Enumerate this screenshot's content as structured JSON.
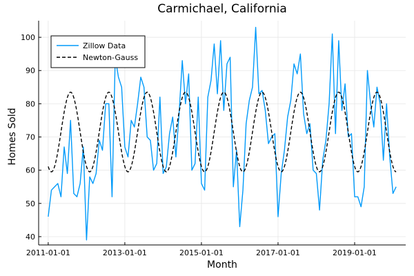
{
  "chart_data": {
    "type": "line",
    "title": "Carmichael, California",
    "xlabel": "Month",
    "ylabel": "Homes Sold",
    "x_start": "2011-01-01",
    "x_ticks": [
      "2011-01-01",
      "2013-01-01",
      "2015-01-01",
      "2017-01-01",
      "2019-01-01"
    ],
    "xlim": [
      "2010-10-01",
      "2020-05-01"
    ],
    "y_ticks": [
      40,
      50,
      60,
      70,
      80,
      90,
      100
    ],
    "ylim": [
      37.5,
      105
    ],
    "grid": true,
    "legend_position": "top-left",
    "series": [
      {
        "name": "Zillow Data",
        "color": "#009AFA",
        "style": "solid",
        "values": [
          46,
          54,
          55,
          56,
          52,
          67,
          59,
          75,
          53,
          52,
          56,
          67,
          39,
          58,
          56,
          59,
          69,
          66,
          80,
          80,
          52,
          94,
          88,
          85,
          67,
          64,
          75,
          73,
          80,
          88,
          85,
          70,
          69,
          60,
          62,
          82,
          59,
          61,
          71,
          76,
          64,
          77,
          93,
          80,
          89,
          60,
          62,
          82,
          56,
          54,
          82,
          87,
          98,
          83,
          99,
          78,
          92,
          94,
          55,
          66,
          43,
          54,
          74,
          81,
          85,
          103,
          83,
          84,
          78,
          68,
          70,
          71,
          46,
          59,
          66,
          76,
          81,
          92,
          89,
          95,
          77,
          71,
          74,
          60,
          59,
          48,
          63,
          69,
          80,
          101,
          71,
          99,
          78,
          86,
          70,
          71,
          52,
          52,
          49,
          55,
          90,
          80,
          73,
          85,
          80,
          63,
          80,
          64,
          53,
          55
        ]
      },
      {
        "name": "Newton-Gauss",
        "color": "#000000",
        "style": "dashed",
        "model": {
          "mean": 71.5,
          "amplitude": 12,
          "peak_month": 7
        }
      }
    ]
  }
}
